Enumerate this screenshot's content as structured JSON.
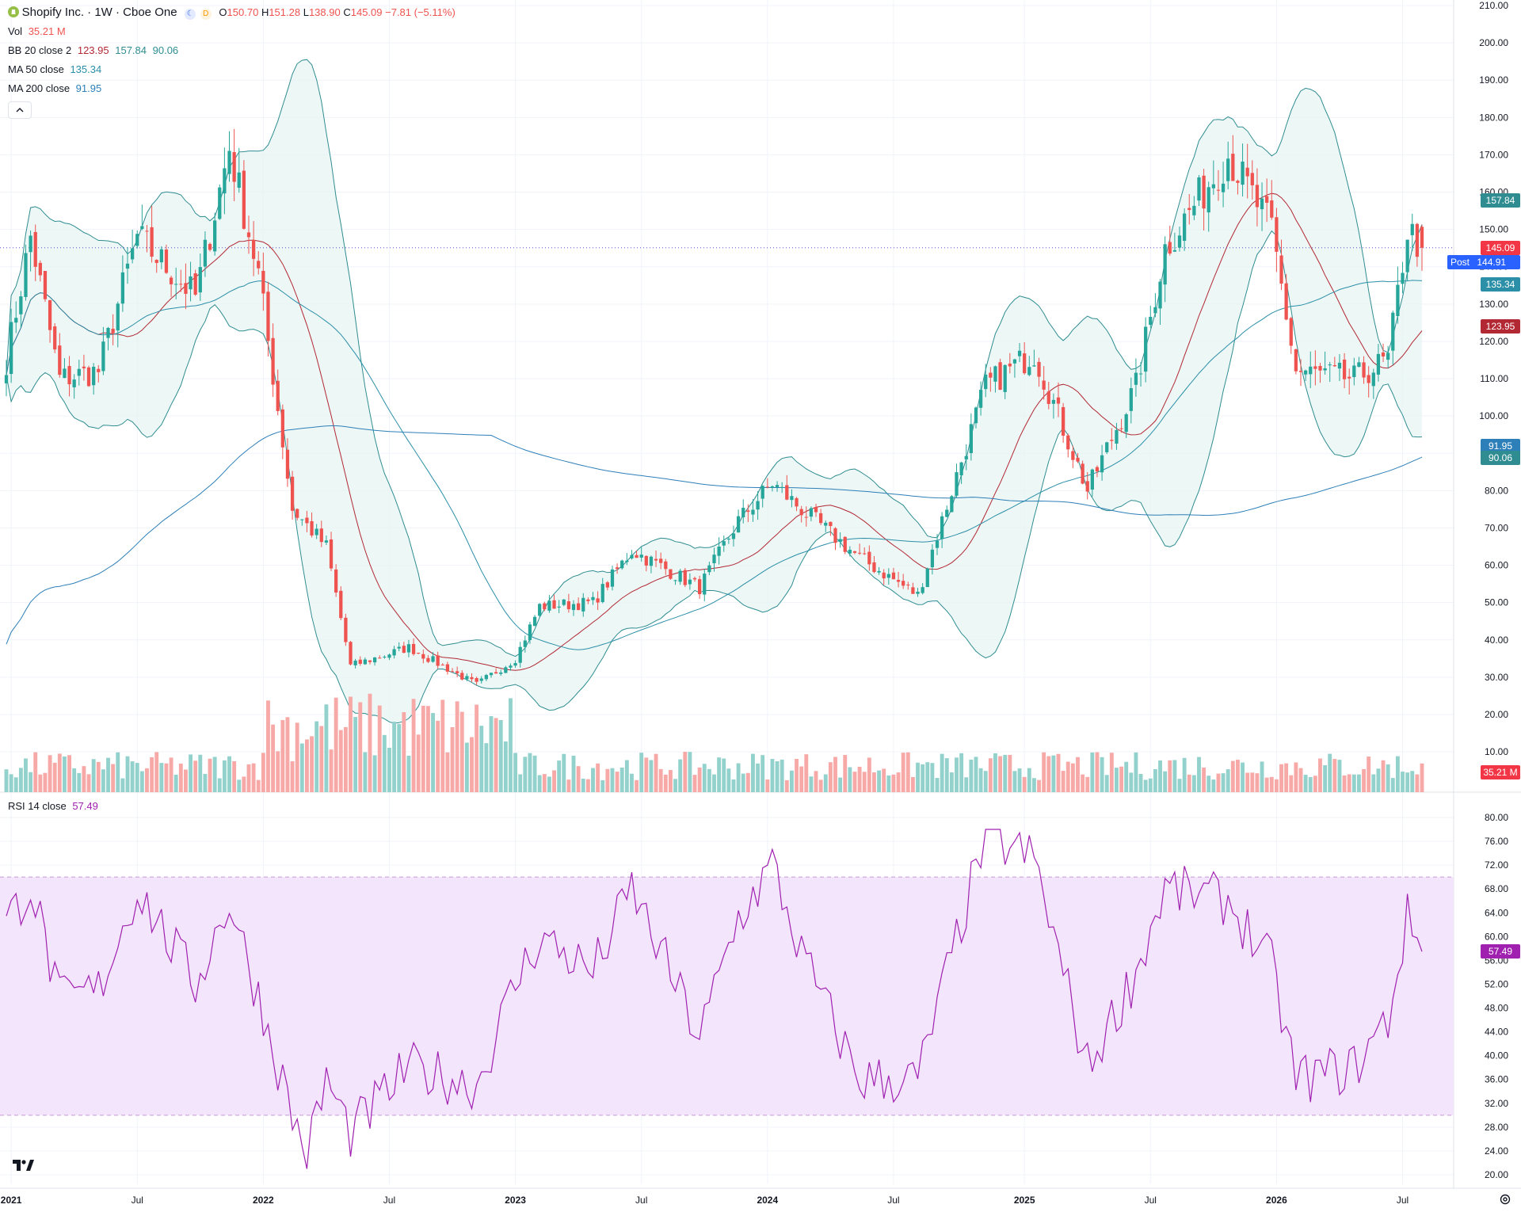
{
  "header": {
    "symbol": "Shopify Inc. · 1W · Cboe One",
    "open_label": "O",
    "open": "150.70",
    "high_label": "H",
    "high": "151.28",
    "low_label": "L",
    "low": "138.90",
    "close_label": "C",
    "close": "145.09",
    "change": "−7.81 (−5.11%)",
    "vol_label": "Vol",
    "vol_value": "35.21 M",
    "bb_label": "BB 20 close 2",
    "bb_basis": "123.95",
    "bb_upper": "157.84",
    "bb_lower": "90.06",
    "ma50_label": "MA 50 close",
    "ma50_value": "135.34",
    "ma200_label": "MA 200 close",
    "ma200_value": "91.95",
    "rsi_label": "RSI 14 close",
    "rsi_value": "57.49",
    "collapse_icon": "chevron-up-icon"
  },
  "price_axis_ticks": [
    "210.00",
    "200.00",
    "190.00",
    "180.00",
    "170.00",
    "160.00",
    "150.00",
    "140.00",
    "130.00",
    "120.00",
    "110.00",
    "100.00",
    "90.00",
    "80.00",
    "70.00",
    "60.00",
    "50.00",
    "40.00",
    "30.00",
    "20.00",
    "10.00"
  ],
  "rsi_axis_ticks": [
    "80.00",
    "76.00",
    "72.00",
    "68.00",
    "64.00",
    "60.00",
    "56.00",
    "52.00",
    "48.00",
    "44.00",
    "40.00",
    "36.00",
    "32.00",
    "28.00",
    "24.00",
    "20.00"
  ],
  "time_axis_labels": [
    "2021",
    "Jul",
    "2022",
    "Jul",
    "2023",
    "Jul",
    "2024",
    "Jul",
    "2025",
    "Jul",
    "2026",
    "Jul"
  ],
  "badges": {
    "bb_upper": "157.84",
    "last_price": "145.09",
    "post_label": "Post",
    "post_price": "144.91",
    "ma50": "135.34",
    "bb_basis": "123.95",
    "ma200": "91.95",
    "bb_lower": "90.06",
    "volume": "35.21 M",
    "rsi": "57.49"
  },
  "colors": {
    "up": "#26a69a",
    "down": "#ef5350",
    "up_vol": "#93d2cc",
    "down_vol": "#f7a9a7",
    "bb_basis": "#b22833",
    "bb_band": "#2f8d91",
    "bb_fill": "#e6f4f2",
    "ma50": "#2b8fa8",
    "ma200": "#2c7fb8",
    "rsi": "#a020b0",
    "rsi_band": "#f3e5fc",
    "last": "#f23645",
    "post": "#2962ff"
  },
  "chart_data": {
    "type": "candlestick",
    "title": "Shopify Inc. · 1W · Cboe One",
    "interval": "1W",
    "y_range": [
      20,
      210
    ],
    "rsi_range": [
      20,
      80
    ],
    "rsi_band": [
      30,
      70
    ],
    "time_labels": [
      "2021",
      "Jul",
      "2022",
      "Jul",
      "2023",
      "Jul",
      "2024",
      "Jul",
      "2025",
      "Jul",
      "2026",
      "Jul"
    ],
    "close_anchors": [
      {
        "t": "2020-12-28",
        "close": 115
      },
      {
        "t": "2021-02-01",
        "close": 148
      },
      {
        "t": "2021-03-15",
        "close": 110
      },
      {
        "t": "2021-05-10",
        "close": 112
      },
      {
        "t": "2021-07-05",
        "close": 148
      },
      {
        "t": "2021-09-27",
        "close": 132
      },
      {
        "t": "2021-11-15",
        "close": 172
      },
      {
        "t": "2021-12-27",
        "close": 138
      },
      {
        "t": "2022-02-14",
        "close": 75
      },
      {
        "t": "2022-04-04",
        "close": 65
      },
      {
        "t": "2022-05-09",
        "close": 33
      },
      {
        "t": "2022-08-01",
        "close": 38
      },
      {
        "t": "2022-11-07",
        "close": 28
      },
      {
        "t": "2023-01-02",
        "close": 35
      },
      {
        "t": "2023-02-06",
        "close": 49
      },
      {
        "t": "2023-04-24",
        "close": 50
      },
      {
        "t": "2023-06-19",
        "close": 64
      },
      {
        "t": "2023-09-25",
        "close": 54
      },
      {
        "t": "2023-11-20",
        "close": 72
      },
      {
        "t": "2024-01-08",
        "close": 82
      },
      {
        "t": "2024-02-19",
        "close": 75
      },
      {
        "t": "2024-05-13",
        "close": 62
      },
      {
        "t": "2024-08-05",
        "close": 52
      },
      {
        "t": "2024-11-11",
        "close": 108
      },
      {
        "t": "2025-01-20",
        "close": 117
      },
      {
        "t": "2025-04-07",
        "close": 80
      },
      {
        "t": "2025-06-16",
        "close": 108
      },
      {
        "t": "2025-07-28",
        "close": 145
      },
      {
        "t": "2025-10-27",
        "close": 170
      },
      {
        "t": "2025-12-29",
        "close": 150
      },
      {
        "t": "2026-02-02",
        "close": 112
      },
      {
        "t": "2026-04-27",
        "close": 110
      },
      {
        "t": "2026-06-15",
        "close": 115
      },
      {
        "t": "2026-07-13",
        "close": 150
      },
      {
        "t": "2026-08-03",
        "close": 145.09
      }
    ],
    "rsi_anchors": [
      {
        "t": "2020-12-28",
        "v": 62
      },
      {
        "t": "2021-02-01",
        "v": 69
      },
      {
        "t": "2021-03-15",
        "v": 49
      },
      {
        "t": "2021-05-10",
        "v": 51
      },
      {
        "t": "2021-07-05",
        "v": 68
      },
      {
        "t": "2021-09-27",
        "v": 52
      },
      {
        "t": "2021-11-15",
        "v": 66
      },
      {
        "t": "2021-12-27",
        "v": 50
      },
      {
        "t": "2022-02-14",
        "v": 30
      },
      {
        "t": "2022-03-07",
        "v": 23
      },
      {
        "t": "2022-04-04",
        "v": 36
      },
      {
        "t": "2022-05-09",
        "v": 27
      },
      {
        "t": "2022-08-01",
        "v": 38
      },
      {
        "t": "2022-11-07",
        "v": 35
      },
      {
        "t": "2023-01-02",
        "v": 52
      },
      {
        "t": "2023-02-06",
        "v": 60
      },
      {
        "t": "2023-04-24",
        "v": 54
      },
      {
        "t": "2023-06-19",
        "v": 68
      },
      {
        "t": "2023-09-25",
        "v": 43
      },
      {
        "t": "2023-11-20",
        "v": 63
      },
      {
        "t": "2024-01-08",
        "v": 72
      },
      {
        "t": "2024-02-19",
        "v": 57
      },
      {
        "t": "2024-05-13",
        "v": 36
      },
      {
        "t": "2024-08-05",
        "v": 36
      },
      {
        "t": "2024-11-11",
        "v": 77
      },
      {
        "t": "2025-01-20",
        "v": 73
      },
      {
        "t": "2025-04-07",
        "v": 38
      },
      {
        "t": "2025-06-16",
        "v": 54
      },
      {
        "t": "2025-07-28",
        "v": 68
      },
      {
        "t": "2025-10-27",
        "v": 66
      },
      {
        "t": "2025-12-29",
        "v": 55
      },
      {
        "t": "2026-02-02",
        "v": 36
      },
      {
        "t": "2026-04-27",
        "v": 38
      },
      {
        "t": "2026-06-15",
        "v": 46
      },
      {
        "t": "2026-07-13",
        "v": 63
      },
      {
        "t": "2026-08-03",
        "v": 57.49
      }
    ],
    "last": {
      "close": 145.09,
      "post": 144.91,
      "bb_upper": 157.84,
      "bb_basis": 123.95,
      "bb_lower": 90.06,
      "ma50": 135.34,
      "ma200": 91.95,
      "volume_m": 35.21,
      "rsi": 57.49
    }
  }
}
